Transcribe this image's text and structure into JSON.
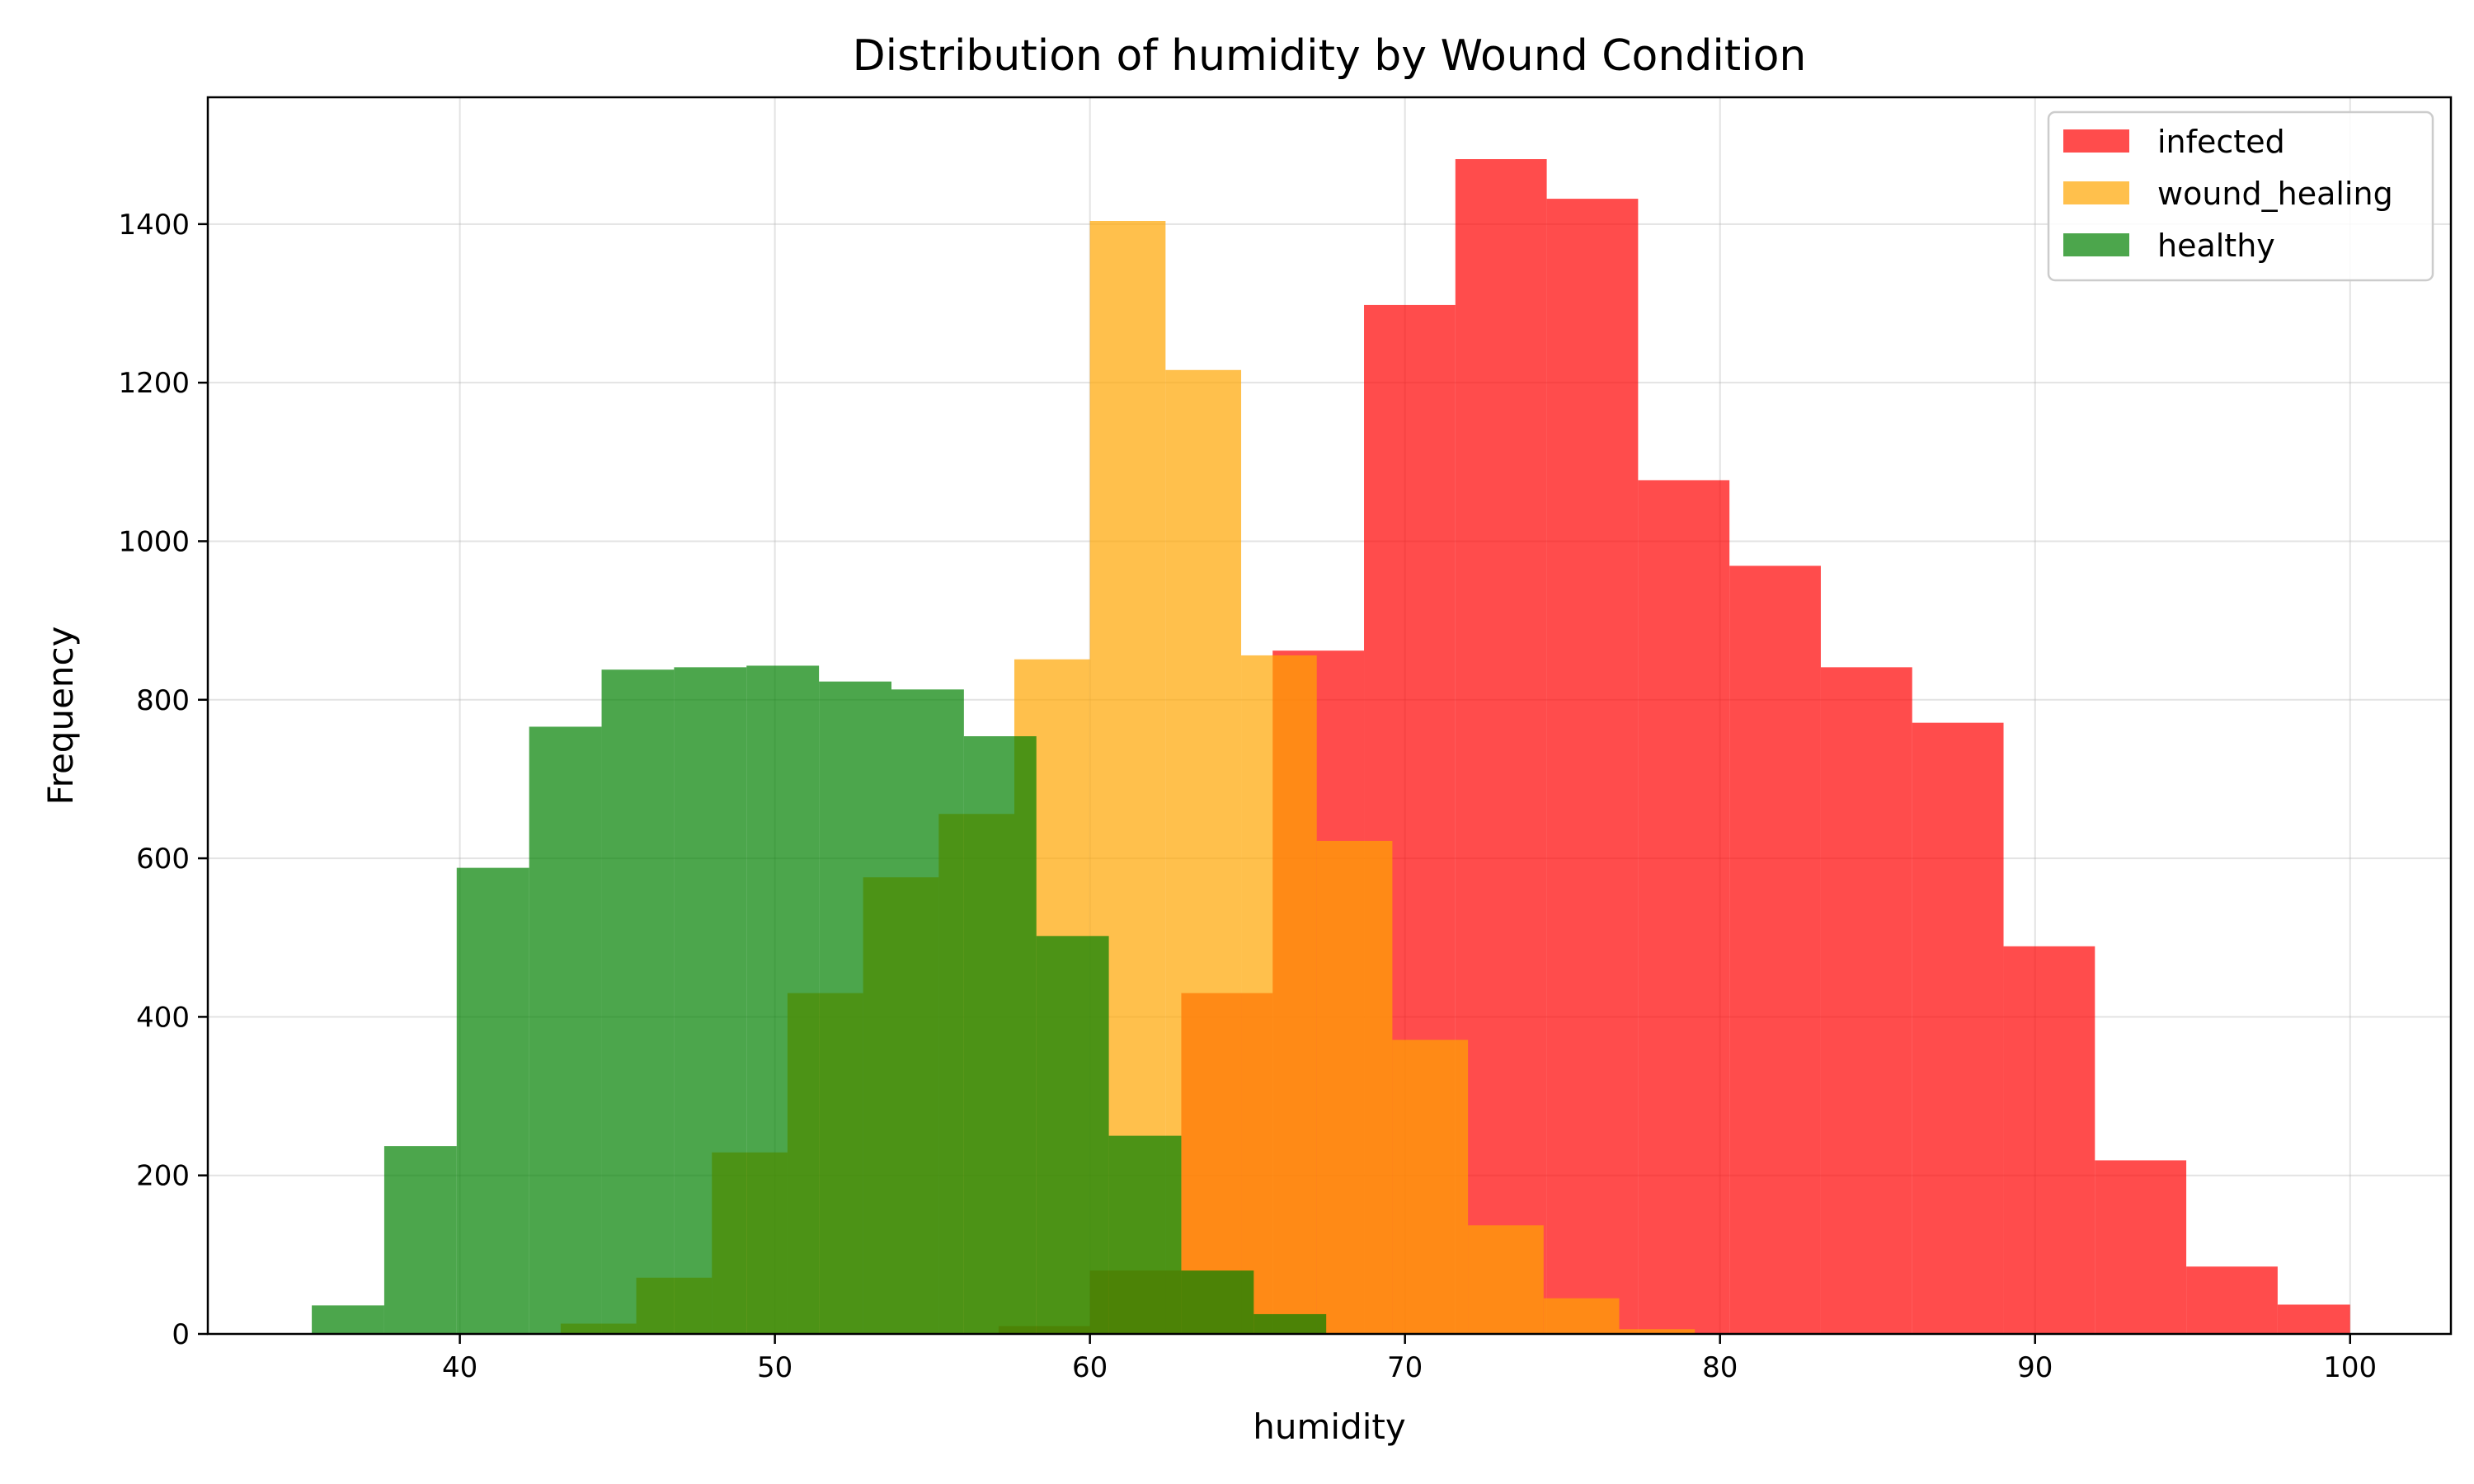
{
  "chart_data": {
    "type": "histogram",
    "title": "Distribution of humidity by Wound Condition",
    "xlabel": "humidity",
    "ylabel": "Frequency",
    "xlim": [
      32,
      103.2
    ],
    "ylim": [
      0,
      1560
    ],
    "xticks": [
      40,
      50,
      60,
      70,
      80,
      90,
      100
    ],
    "yticks": [
      0,
      200,
      400,
      600,
      800,
      1000,
      1200,
      1400
    ],
    "grid": true,
    "legend_position": "top-right",
    "series": [
      {
        "name": "infected",
        "color": "#ff0000",
        "opacity": 0.7,
        "bin_edges": [
          42.6,
          45.5,
          48.4,
          51.3,
          54.2,
          57.1,
          60.0,
          62.9,
          65.8,
          68.7,
          71.6,
          74.5,
          77.4,
          80.3,
          83.2,
          86.1,
          89.0,
          91.9,
          94.8,
          97.7,
          100.0
        ],
        "counts": [
          0,
          0,
          0,
          0,
          0,
          10,
          80,
          430,
          862,
          1298,
          1482,
          1432,
          1077,
          969,
          841,
          771,
          489,
          219,
          85,
          37
        ]
      },
      {
        "name": "wound_healing",
        "color": "#ffa500",
        "opacity": 0.7,
        "bin_edges": [
          43.2,
          45.6,
          48.0,
          50.4,
          52.8,
          55.2,
          57.6,
          60.0,
          62.4,
          64.8,
          67.2,
          69.6,
          72.0,
          74.4,
          76.8,
          79.2
        ],
        "counts": [
          13,
          71,
          229,
          430,
          576,
          656,
          851,
          1404,
          1216,
          856,
          622,
          371,
          137,
          45,
          6
        ]
      },
      {
        "name": "healthy",
        "color": "#008000",
        "opacity": 0.7,
        "bin_edges": [
          35.3,
          37.6,
          39.9,
          42.2,
          44.5,
          46.8,
          49.1,
          51.4,
          53.7,
          56.0,
          58.3,
          60.6,
          62.9,
          65.2,
          67.5
        ],
        "counts": [
          36,
          237,
          588,
          766,
          838,
          841,
          843,
          823,
          813,
          754,
          502,
          250,
          80,
          25
        ]
      }
    ]
  }
}
